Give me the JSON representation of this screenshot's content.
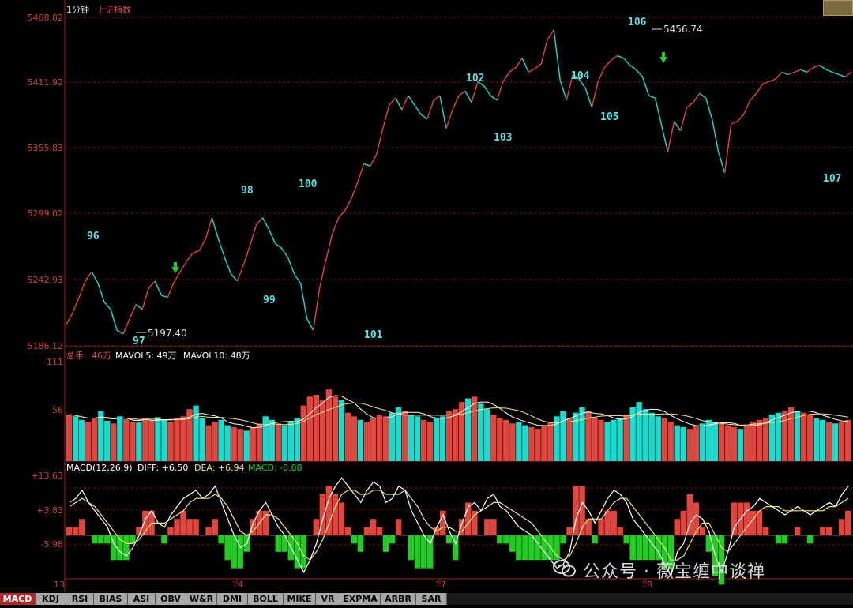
{
  "window": {
    "timeframe": "1分钟",
    "index_name": "上证指数"
  },
  "colors": {
    "up": "#e0463d",
    "down": "#19dccf",
    "axis": "#a02020",
    "grid": "#7a1414",
    "diff": "#ffffff",
    "dea": "#f0e68c",
    "macd_pos": "#e0463d",
    "macd_neg": "#22cc22"
  },
  "price_panel": {
    "y_ticks": [
      "5468.02",
      "5411.92",
      "5355.83",
      "5299.02",
      "5242.93",
      "5186.12"
    ],
    "annotations": {
      "low_value": "5197.40",
      "high_value": "5456.74",
      "wave_labels": [
        "96",
        "97",
        "98",
        "99",
        "100",
        "101",
        "102",
        "103",
        "104",
        "105",
        "106",
        "107"
      ]
    }
  },
  "volume_panel": {
    "header": {
      "label": "总手:",
      "value": "46万",
      "mavol5": "MAVOL5: 49万",
      "mavol10": "MAVOL10: 48万"
    },
    "y_ticks": [
      "111",
      "56"
    ]
  },
  "macd_panel": {
    "header": {
      "label": "MACD(12,26,9)",
      "diff": "DIFF: +6.50",
      "dea": "DEA: +6.94",
      "macd": "MACD: -0.88"
    },
    "y_ticks": [
      "+13.63",
      "+3.83",
      "-5.98"
    ]
  },
  "x_axis": {
    "labels": [
      "13",
      "14",
      "17",
      "18"
    ]
  },
  "tabs": [
    "MACD",
    "KDJ",
    "RSI",
    "BIAS",
    "ASI",
    "OBV",
    "W&R",
    "DMI",
    "BOLL",
    "MIKE",
    "VR",
    "EXPMA",
    "ARBR",
    "SAR"
  ],
  "active_tab": "MACD",
  "watermark": "公众号 · 薇宝缠中谈禅",
  "chart_data": [
    {
      "type": "line",
      "x_unit": "minute index (1-minute bars)",
      "x": [
        0,
        8,
        16,
        24,
        32,
        40,
        48,
        56,
        64,
        72,
        80,
        88,
        96,
        104,
        112,
        120,
        128,
        136,
        144,
        152,
        160,
        168,
        176,
        184,
        192,
        200,
        208,
        216,
        224,
        232,
        240,
        248,
        256,
        264,
        272,
        280,
        288,
        296,
        304,
        312,
        320,
        328,
        336,
        344,
        352,
        360,
        368,
        376,
        384,
        392,
        400,
        408,
        416,
        424,
        432,
        440,
        448,
        456,
        464,
        472,
        480,
        488,
        496,
        504,
        512,
        520,
        528,
        536,
        544,
        552,
        560,
        568,
        576,
        584,
        592,
        600,
        608,
        616,
        624,
        632,
        640,
        648,
        656,
        664,
        672,
        680,
        688,
        696,
        704,
        712,
        720,
        728,
        736,
        744,
        752,
        760,
        768,
        776,
        784,
        792,
        800,
        808,
        816,
        824,
        832,
        840,
        848,
        856,
        864,
        872,
        880,
        888,
        896,
        904,
        912,
        920,
        928,
        936,
        944,
        952,
        960,
        968,
        976,
        984,
        992
      ],
      "y": [
        5205,
        5215,
        5228,
        5242,
        5250,
        5240,
        5224,
        5218,
        5200,
        5197,
        5210,
        5222,
        5218,
        5236,
        5242,
        5230,
        5228,
        5241,
        5250,
        5259,
        5266,
        5268,
        5278,
        5296,
        5278,
        5262,
        5248,
        5242,
        5256,
        5272,
        5290,
        5296,
        5286,
        5274,
        5270,
        5262,
        5248,
        5240,
        5210,
        5200,
        5236,
        5260,
        5282,
        5296,
        5302,
        5312,
        5326,
        5342,
        5340,
        5350,
        5372,
        5392,
        5398,
        5388,
        5400,
        5392,
        5384,
        5380,
        5396,
        5400,
        5372,
        5388,
        5400,
        5404,
        5394,
        5412,
        5408,
        5400,
        5396,
        5412,
        5420,
        5424,
        5432,
        5420,
        5423,
        5427,
        5448,
        5456,
        5413,
        5396,
        5418,
        5414,
        5406,
        5390,
        5412,
        5424,
        5430,
        5434,
        5432,
        5426,
        5422,
        5416,
        5400,
        5398,
        5375,
        5352,
        5378,
        5370,
        5390,
        5394,
        5402,
        5398,
        5380,
        5352,
        5334,
        5376,
        5378,
        5384,
        5396,
        5402,
        5410,
        5412,
        5414,
        5420,
        5418,
        5420,
        5422,
        5420,
        5424,
        5426,
        5422,
        5420,
        5418,
        5416,
        5420
      ],
      "ylim": [
        5186.12,
        5468.02
      ],
      "grid": true
    },
    {
      "type": "bar",
      "name": "volume",
      "ylim": [
        0,
        111
      ],
      "values": [
        52,
        50,
        46,
        44,
        48,
        56,
        45,
        42,
        50,
        47,
        44,
        43,
        48,
        45,
        49,
        46,
        44,
        48,
        50,
        58,
        62,
        48,
        40,
        44,
        46,
        40,
        38,
        36,
        34,
        38,
        42,
        50,
        46,
        42,
        40,
        44,
        48,
        62,
        72,
        74,
        68,
        80,
        72,
        68,
        54,
        50,
        46,
        44,
        48,
        52,
        50,
        54,
        60,
        56,
        52,
        50,
        46,
        44,
        48,
        50,
        56,
        58,
        66,
        70,
        72,
        64,
        58,
        52,
        48,
        46,
        42,
        44,
        40,
        38,
        36,
        40,
        44,
        50,
        56,
        48,
        54,
        60,
        56,
        48,
        46,
        44,
        46,
        48,
        52,
        60,
        66,
        58,
        54,
        50,
        48,
        44,
        40,
        38,
        36,
        40,
        42,
        46,
        44,
        42,
        40,
        38,
        36,
        40,
        44,
        46,
        48,
        52,
        54,
        56,
        60,
        56,
        54,
        52,
        48,
        46,
        44,
        42,
        44,
        46
      ],
      "up_down": [
        1,
        0,
        0,
        1,
        1,
        0,
        0,
        1,
        0,
        1,
        1,
        0,
        1,
        1,
        0,
        0,
        1,
        1,
        1,
        1,
        0,
        0,
        1,
        1,
        0,
        0,
        1,
        1,
        0,
        1,
        1,
        0,
        0,
        1,
        0,
        0,
        0,
        1,
        1,
        1,
        1,
        1,
        1,
        0,
        1,
        1,
        0,
        1,
        1,
        1,
        1,
        0,
        0,
        1,
        0,
        0,
        1,
        1,
        0,
        0,
        1,
        1,
        1,
        0,
        1,
        0,
        0,
        1,
        1,
        1,
        1,
        0,
        0,
        1,
        1,
        1,
        1,
        0,
        0,
        1,
        0,
        0,
        1,
        1,
        1,
        0,
        0,
        0,
        1,
        0,
        0,
        0,
        0,
        0,
        1,
        1,
        0,
        0,
        1,
        1,
        0,
        0,
        0,
        1,
        1,
        1,
        0,
        1,
        1,
        1,
        1,
        0,
        0,
        1,
        1,
        0,
        1,
        1,
        0,
        0,
        1,
        0,
        1,
        1
      ]
    },
    {
      "type": "line",
      "name": "macd",
      "ylim": [
        -10,
        15
      ],
      "diff": [
        8,
        9,
        11,
        8,
        6,
        4,
        2,
        -2,
        -4,
        -5,
        -3,
        0,
        4,
        6,
        3,
        2,
        5,
        7,
        9,
        10,
        11,
        9,
        10,
        12,
        8,
        4,
        0,
        -3,
        -2,
        3,
        6,
        8,
        5,
        2,
        0,
        -3,
        -6,
        -9,
        -6,
        -2,
        4,
        9,
        12,
        14,
        12,
        10,
        8,
        11,
        13,
        12,
        8,
        9,
        12,
        11,
        6,
        3,
        0,
        -2,
        2,
        5,
        1,
        -2,
        3,
        7,
        8,
        6,
        9,
        10,
        7,
        6,
        4,
        2,
        1,
        0,
        -2,
        -4,
        -6,
        -8,
        -7,
        -4,
        4,
        8,
        6,
        3,
        6,
        9,
        11,
        10,
        8,
        4,
        2,
        0,
        -2,
        -4,
        -7,
        -10,
        -4,
        -2,
        3,
        5,
        4,
        1,
        -5,
        -9,
        -4,
        2,
        4,
        6,
        7,
        9,
        8,
        7,
        6,
        5,
        6,
        7,
        6,
        5,
        6,
        7,
        8,
        7,
        10,
        12
      ],
      "dea": [
        7,
        8,
        9,
        8,
        7,
        5,
        3,
        1,
        -1,
        -2,
        -2,
        -1,
        1,
        3,
        3,
        3,
        4,
        5,
        6,
        8,
        9,
        9,
        9,
        10,
        9,
        7,
        4,
        1,
        0,
        1,
        3,
        5,
        5,
        4,
        2,
        0,
        -2,
        -5,
        -6,
        -4,
        -1,
        3,
        7,
        10,
        11,
        11,
        10,
        10,
        11,
        11,
        10,
        10,
        10,
        11,
        9,
        7,
        4,
        2,
        1,
        2,
        2,
        1,
        1,
        3,
        5,
        6,
        7,
        8,
        8,
        7,
        6,
        5,
        4,
        3,
        1,
        -1,
        -3,
        -5,
        -6,
        -5,
        -2,
        2,
        4,
        4,
        4,
        6,
        8,
        9,
        9,
        7,
        5,
        3,
        1,
        -1,
        -3,
        -6,
        -6,
        -5,
        -2,
        1,
        3,
        3,
        0,
        -3,
        -4,
        -2,
        0,
        2,
        4,
        6,
        7,
        7,
        7,
        6,
        6,
        6,
        6,
        6,
        6,
        6,
        7,
        7,
        8,
        9
      ],
      "macd_hist": [
        1,
        1,
        2,
        0,
        -1,
        -1,
        -1,
        -3,
        -3,
        -3,
        -1,
        1,
        3,
        3,
        0,
        -1,
        1,
        2,
        3,
        2,
        2,
        0,
        1,
        2,
        -1,
        -3,
        -4,
        -4,
        -2,
        2,
        3,
        3,
        0,
        -2,
        -2,
        -3,
        -4,
        -4,
        0,
        2,
        5,
        6,
        5,
        4,
        1,
        -1,
        -2,
        1,
        2,
        1,
        -2,
        -1,
        2,
        0,
        -3,
        -4,
        -4,
        -4,
        1,
        3,
        -1,
        -3,
        2,
        4,
        3,
        0,
        2,
        2,
        -1,
        -1,
        -2,
        -3,
        -3,
        -3,
        -3,
        -3,
        -3,
        -3,
        -1,
        1,
        6,
        6,
        2,
        -1,
        2,
        3,
        3,
        1,
        -1,
        -3,
        -3,
        -3,
        -3,
        -3,
        -4,
        -4,
        2,
        3,
        5,
        4,
        1,
        -2,
        -5,
        -6,
        0,
        4,
        4,
        4,
        3,
        3,
        1,
        0,
        -1,
        -1,
        0,
        1,
        0,
        -1,
        0,
        1,
        1,
        0,
        2,
        3
      ]
    }
  ]
}
